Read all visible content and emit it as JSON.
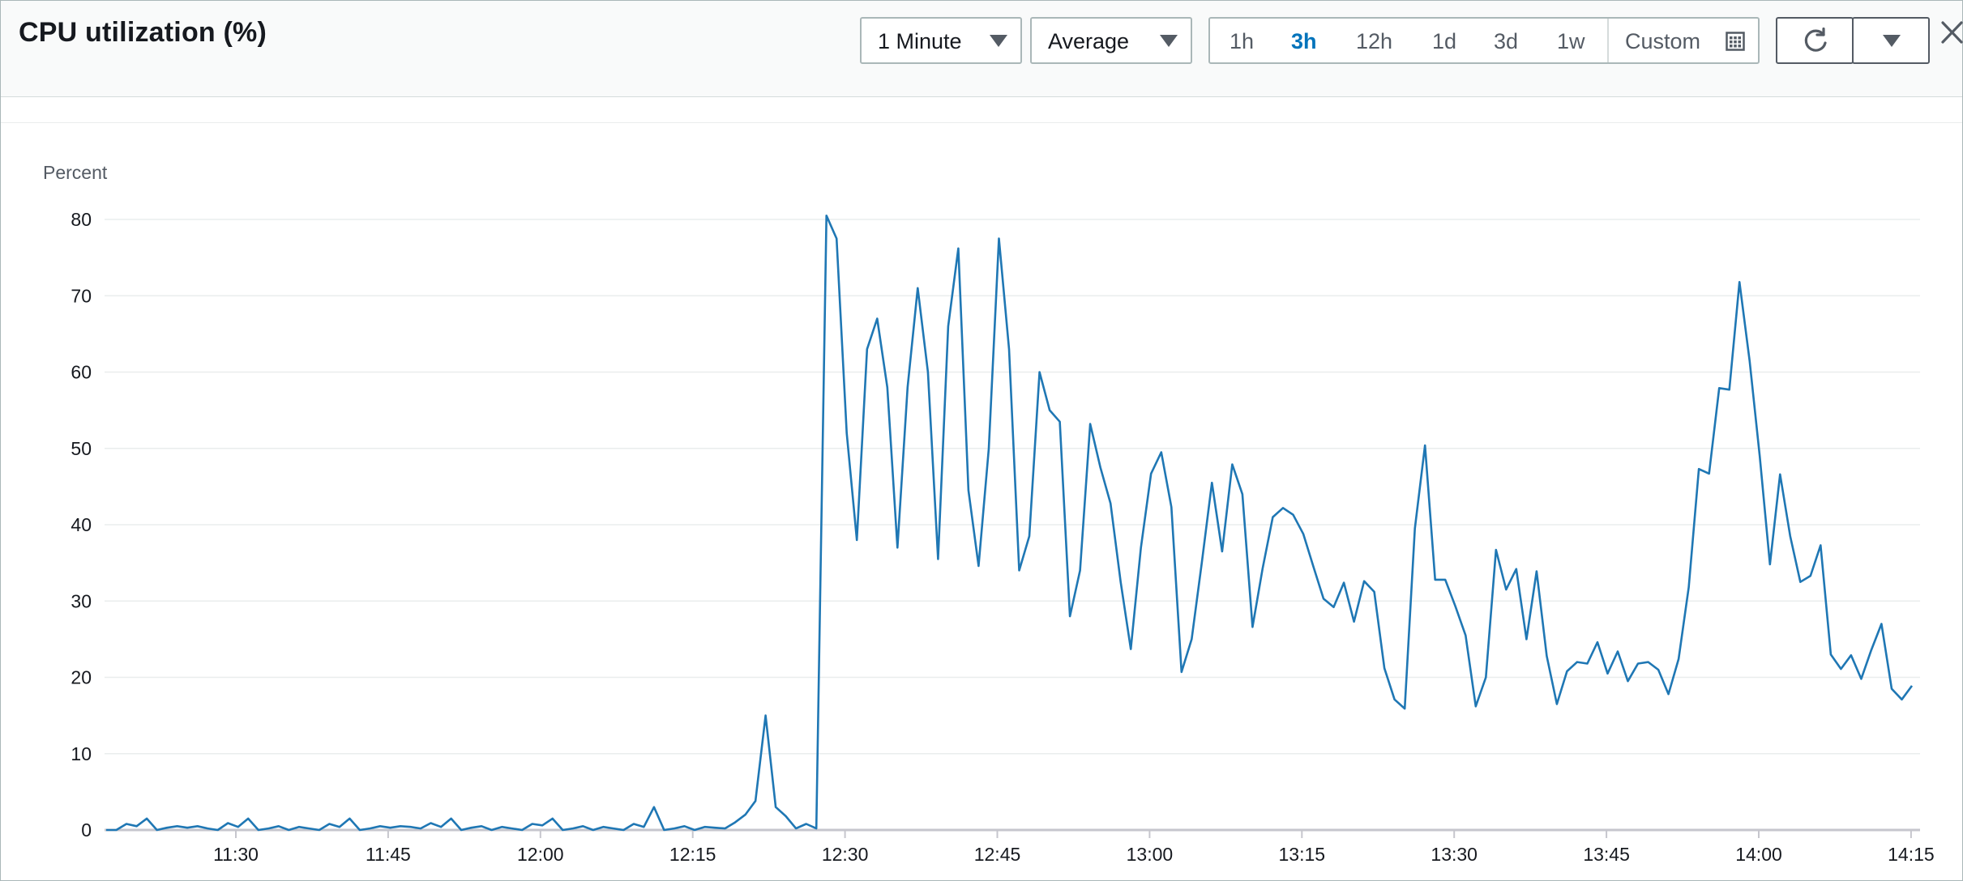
{
  "header": {
    "title": "CPU utilization (%)"
  },
  "controls": {
    "period_label": "1 Minute",
    "statistic_label": "Average",
    "ranges": [
      "1h",
      "3h",
      "12h",
      "1d",
      "3d",
      "1w"
    ],
    "active_range": "3h",
    "custom_label": "Custom",
    "accent_color": "#0073bb"
  },
  "icons": {
    "period_caret": "caret-down-icon",
    "statistic_caret": "caret-down-icon",
    "custom_calendar": "calendar-icon",
    "refresh": "refresh-icon",
    "more_caret": "caret-down-icon",
    "close": "close-icon"
  },
  "chart_data": {
    "type": "line",
    "ylabel": "Percent",
    "ylim": [
      0,
      80
    ],
    "yticks": [
      0,
      10,
      20,
      30,
      40,
      50,
      60,
      70,
      80
    ],
    "xtick_labels": [
      "11:30",
      "11:45",
      "12:00",
      "12:15",
      "12:30",
      "12:45",
      "13:00",
      "13:15",
      "13:30",
      "13:45",
      "14:00",
      "14:15"
    ],
    "grid": true,
    "line_color": "#1f77b4",
    "series": [
      {
        "values": [
          0,
          0,
          0.8,
          0.5,
          1.5,
          0,
          0.3,
          0.5,
          0.3,
          0.5,
          0.2,
          0,
          0.9,
          0.4,
          1.5,
          0,
          0.2,
          0.5,
          0,
          0.4,
          0.2,
          0,
          0.8,
          0.4,
          1.5,
          0,
          0.2,
          0.5,
          0.3,
          0.5,
          0.4,
          0.2,
          0.9,
          0.4,
          1.5,
          0,
          0.3,
          0.5,
          0,
          0.4,
          0.2,
          0,
          0.8,
          0.6,
          1.5,
          0,
          0.2,
          0.5,
          0,
          0.4,
          0.2,
          0,
          0.8,
          0.4,
          3,
          0,
          0.2,
          0.5,
          0,
          0.4,
          0.3,
          0.2,
          1,
          2,
          3.8,
          15,
          3,
          1.8,
          0.2,
          0.8,
          0.2,
          80.5,
          77.5,
          52,
          38,
          63,
          67,
          58,
          37,
          58,
          71,
          60,
          35.5,
          66,
          76.2,
          44.5,
          34.6,
          50,
          77.5,
          63,
          34,
          38.5,
          60,
          55,
          53.5,
          28,
          34,
          53.2,
          47.5,
          42.8,
          32.5,
          23.7,
          37,
          46.7,
          49.5,
          42.3,
          20.7,
          25,
          35,
          45.5,
          36.5,
          47.9,
          44,
          26.6,
          34.3,
          41,
          42.2,
          41.3,
          38.8,
          34.5,
          30.3,
          29.2,
          32.4,
          27.3,
          32.6,
          31.2,
          21.2,
          17.1,
          15.9,
          39.5,
          50.4,
          32.8,
          32.8,
          29.3,
          25.5,
          16.2,
          20,
          36.7,
          31.5,
          34.2,
          25,
          33.9,
          22.8,
          16.5,
          20.8,
          22,
          21.8,
          24.6,
          20.5,
          23.4,
          19.5,
          21.8,
          22,
          21,
          17.8,
          22.4,
          31.8,
          47.3,
          46.7,
          57.9,
          57.7,
          71.8,
          61.5,
          49,
          34.8,
          46.6,
          38.5,
          32.5,
          33.3,
          37.3,
          23,
          21.1,
          22.9,
          19.8,
          23.6,
          27,
          18.5,
          17.1,
          18.9
        ]
      }
    ]
  }
}
